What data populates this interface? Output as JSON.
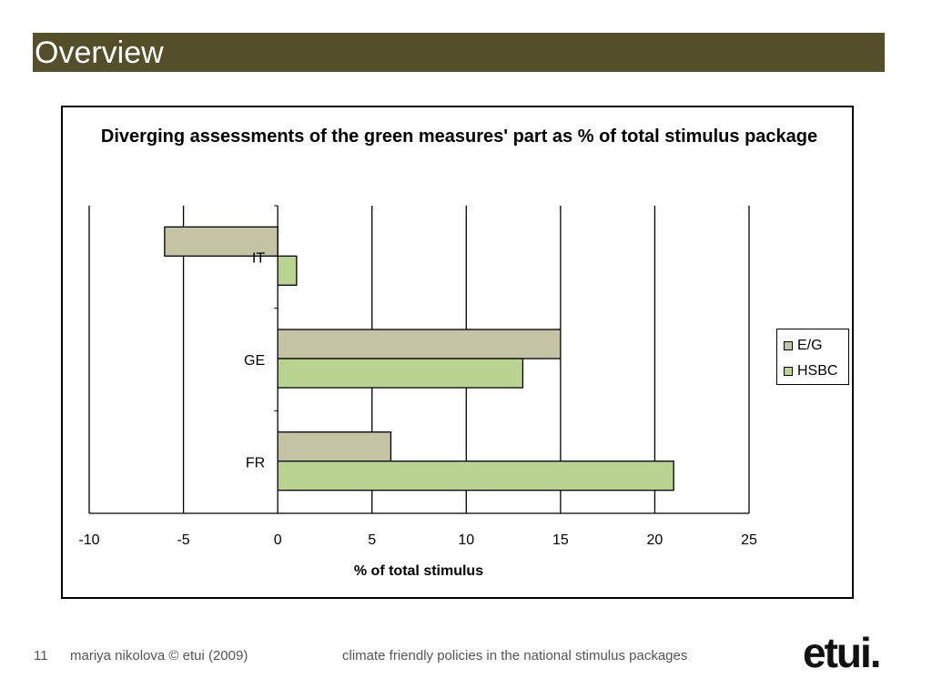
{
  "slide": {
    "title": "Overview",
    "number": "11",
    "author": "mariya nikolova © etui (2009)",
    "topic": "climate friendly policies in the national stimulus packages",
    "logo": "etui."
  },
  "colors": {
    "title_bar": "#554f29",
    "eg_bar": "#c4c4a4",
    "hsbc_bar": "#b9d491"
  },
  "chart_data": {
    "type": "bar",
    "orientation": "horizontal",
    "title": "Diverging assessments of the green measures' part as % of total stimulus package",
    "xlabel": "% of total stimulus",
    "ylabel": "",
    "categories": [
      "IT",
      "GE",
      "FR"
    ],
    "series": [
      {
        "name": "E/G",
        "values": [
          -6,
          15,
          6
        ],
        "color": "#c4c4a4"
      },
      {
        "name": "HSBC",
        "values": [
          1,
          13,
          21
        ],
        "color": "#b9d491"
      }
    ],
    "xlim": [
      -10,
      25
    ],
    "xticks": [
      -10,
      -5,
      0,
      5,
      10,
      15,
      20,
      25
    ],
    "grid": true,
    "legend": "right"
  }
}
